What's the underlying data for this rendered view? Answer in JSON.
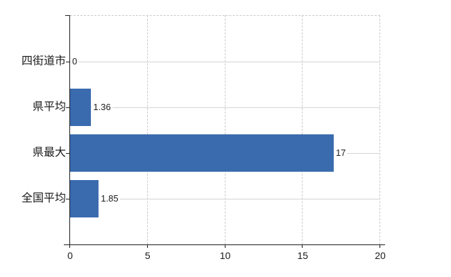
{
  "chart_data": {
    "type": "bar",
    "orientation": "horizontal",
    "title": "",
    "xlabel": "",
    "ylabel": "",
    "categories": [
      "四街道市",
      "県平均",
      "県最大",
      "全国平均"
    ],
    "values": [
      0,
      1.36,
      17,
      1.85
    ],
    "value_labels": [
      "0",
      "1.36",
      "17",
      "1.85"
    ],
    "xlim": [
      0,
      20
    ],
    "x_ticks": [
      0,
      5,
      10,
      15,
      20
    ],
    "grid": true,
    "legend": false,
    "bar_color": "#3b6baf",
    "axis_color": "#1a1a1a",
    "h_gridline_color": "#d4d4d4",
    "v_gridline_color": "#c9c9c9",
    "text_color": "#1a1a1a",
    "background_color": "#ffffff"
  }
}
